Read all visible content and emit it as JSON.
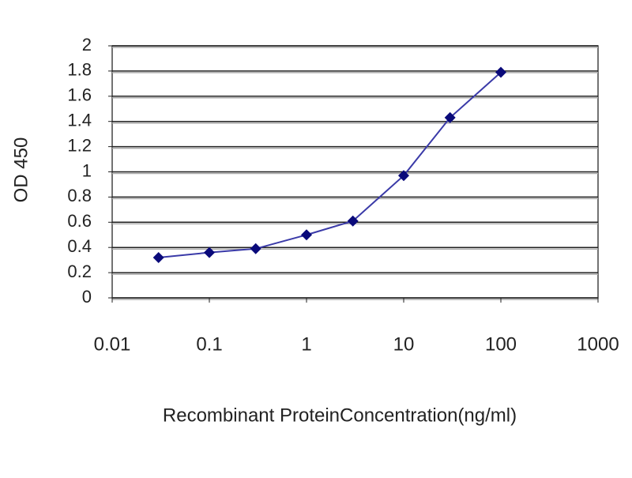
{
  "chart_data": {
    "type": "line",
    "x_label": "Recombinant ProteinConcentration(ng/ml)",
    "y_label": "OD 450",
    "x": [
      0.03,
      0.1,
      0.3,
      1,
      3,
      10,
      30,
      100
    ],
    "series": [
      {
        "color": "#3a3aa8",
        "marker_color": "#0a0a7a",
        "values": [
          0.32,
          0.36,
          0.39,
          0.5,
          0.61,
          0.97,
          1.43,
          1.79
        ]
      }
    ],
    "xlim": [
      0.01,
      1000
    ],
    "xticks": [
      0.01,
      0.1,
      1,
      10,
      100,
      1000
    ],
    "xscale": "log",
    "ylim": [
      0,
      2
    ],
    "yticks": [
      0,
      0.2,
      0.4,
      0.6,
      0.8,
      1,
      1.2,
      1.4,
      1.6,
      1.8,
      2
    ],
    "grid": true
  }
}
